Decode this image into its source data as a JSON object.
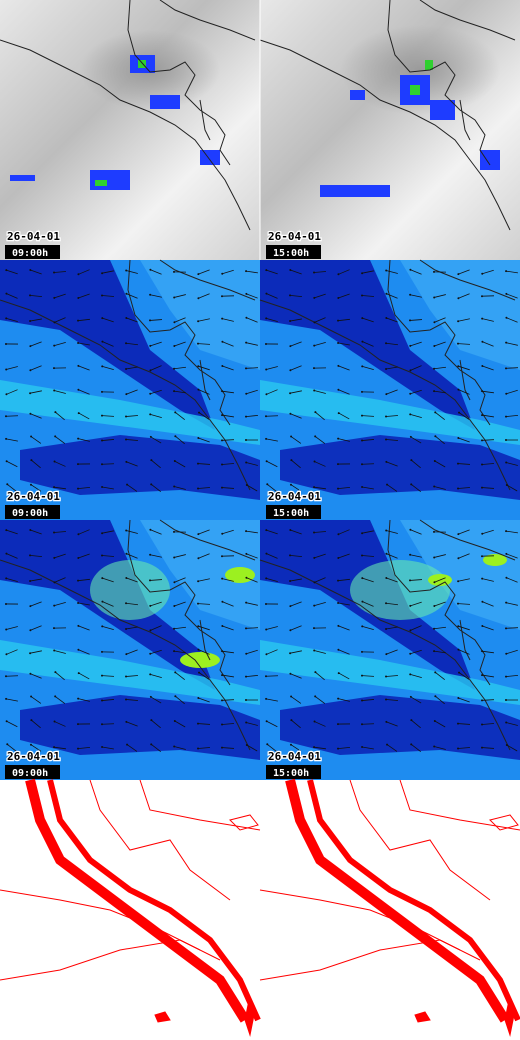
{
  "panels": [
    {
      "date": "26-04-01",
      "time": "09:00h"
    },
    {
      "date": "26-04-01",
      "time": "15:00h"
    },
    {
      "date": "26-04-01",
      "time": "09:00h"
    },
    {
      "date": "26-04-01",
      "time": "15:00h"
    },
    {
      "date": "26-04-01",
      "time": "09:00h"
    },
    {
      "date": "26-04-01",
      "time": "15:00h"
    }
  ]
}
